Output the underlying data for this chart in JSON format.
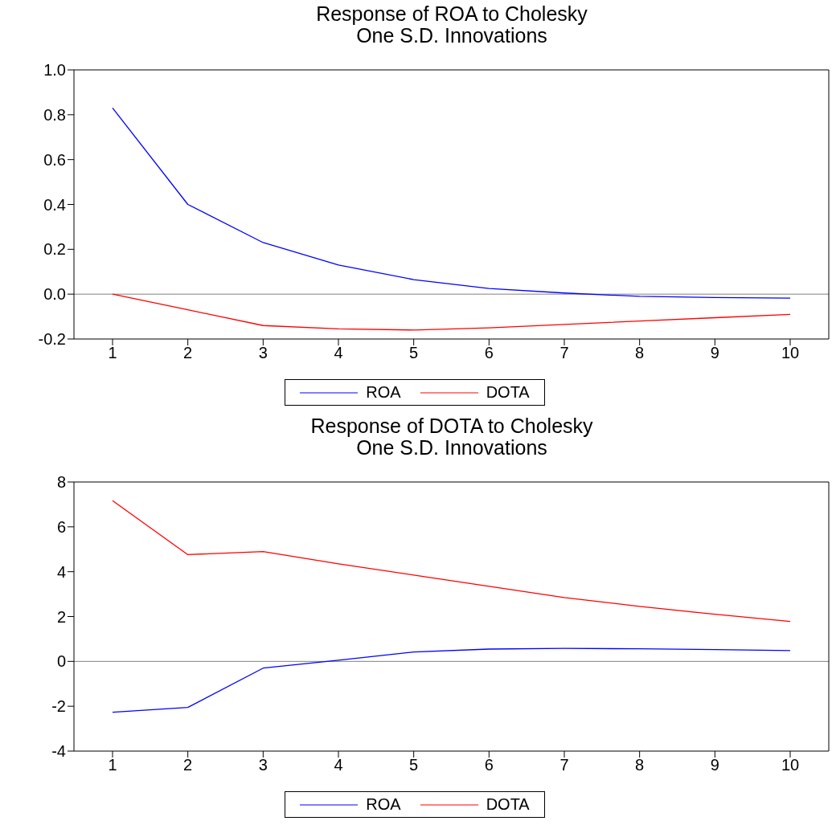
{
  "chart_data": [
    {
      "type": "line",
      "title": "Response of ROA to Cholesky",
      "subtitle": "One S.D. Innovations",
      "categories": [
        "1",
        "2",
        "3",
        "4",
        "5",
        "6",
        "7",
        "8",
        "9",
        "10"
      ],
      "series": [
        {
          "name": "ROA",
          "color": "#0000ff",
          "values": [
            0.83,
            0.4,
            0.23,
            0.13,
            0.065,
            0.025,
            0.005,
            -0.01,
            -0.015,
            -0.018
          ]
        },
        {
          "name": "DOTA",
          "color": "#ff0000",
          "values": [
            0,
            -0.07,
            -0.14,
            -0.155,
            -0.16,
            -0.15,
            -0.135,
            -0.12,
            -0.105,
            -0.09
          ]
        }
      ],
      "ylim": [
        -0.2,
        1.0
      ],
      "yticks": [
        {
          "value": -0.2,
          "label": "-0.2"
        },
        {
          "value": 0,
          "label": "0.0"
        },
        {
          "value": 0.2,
          "label": "0.2"
        },
        {
          "value": 0.4,
          "label": "0.4"
        },
        {
          "value": 0.6,
          "label": "0.6"
        },
        {
          "value": 0.8,
          "label": "0.8"
        },
        {
          "value": 1,
          "label": "1.0"
        }
      ],
      "ref_lines": [
        {
          "axis": "y",
          "value": 0,
          "label": null,
          "color": "#808080"
        }
      ],
      "grid": false,
      "legend": "bottom",
      "marker": "none",
      "line_style": "solid"
    },
    {
      "type": "line",
      "title": "Response of DOTA to Cholesky",
      "subtitle": "One S.D. Innovations",
      "categories": [
        "1",
        "2",
        "3",
        "4",
        "5",
        "6",
        "7",
        "8",
        "9",
        "10"
      ],
      "series": [
        {
          "name": "ROA",
          "color": "#0000ff",
          "values": [
            -2.27,
            -2.05,
            -0.3,
            0.05,
            0.42,
            0.55,
            0.58,
            0.56,
            0.53,
            0.48
          ]
        },
        {
          "name": "DOTA",
          "color": "#ff0000",
          "values": [
            7.17,
            4.76,
            4.9,
            4.35,
            3.85,
            3.35,
            2.85,
            2.45,
            2.1,
            1.78
          ]
        }
      ],
      "ylim": [
        -4,
        8
      ],
      "yticks": [
        -4,
        -2,
        0,
        2,
        4,
        6,
        8
      ],
      "ref_lines": [
        {
          "axis": "y",
          "value": 0,
          "label": null,
          "color": "#808080"
        }
      ],
      "grid": false,
      "legend": "bottom",
      "marker": "none",
      "line_style": "solid"
    }
  ]
}
